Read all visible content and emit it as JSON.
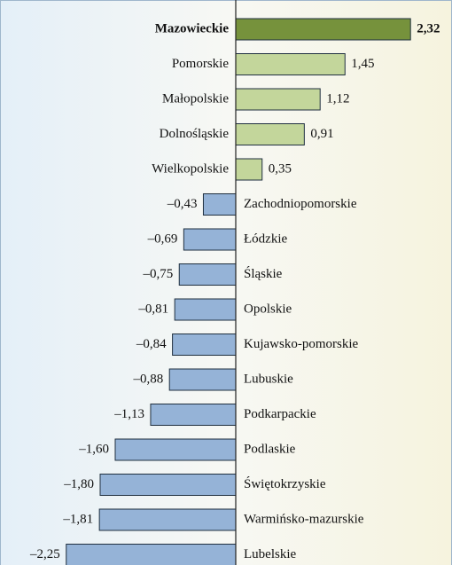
{
  "chart_data": {
    "type": "hbar",
    "categories": [
      "Mazowieckie",
      "Pomorskie",
      "Małopolskie",
      "Dolnośląskie",
      "Wielkopolskie",
      "Zachodniopomorskie",
      "Łódzkie",
      "Śląskie",
      "Opolskie",
      "Kujawsko-pomorskie",
      "Lubuskie",
      "Podkarpackie",
      "Podlaskie",
      "Świętokrzyskie",
      "Warmińsko-mazurskie",
      "Lubelskie"
    ],
    "values": [
      2.32,
      1.45,
      1.12,
      0.91,
      0.35,
      -0.43,
      -0.69,
      -0.75,
      -0.81,
      -0.84,
      -0.88,
      -1.13,
      -1.6,
      -1.8,
      -1.81,
      -2.25
    ],
    "value_labels": [
      "2,32",
      "1,45",
      "1,12",
      "0,91",
      "0,35",
      "–0,43",
      "–0,69",
      "–0,75",
      "–0,81",
      "–0,84",
      "–0,88",
      "–1,13",
      "–1,60",
      "–1,80",
      "–1,81",
      "–2,25"
    ],
    "colors": [
      "#76923c",
      "#c3d69b",
      "#c3d69b",
      "#c3d69b",
      "#c3d69b",
      "#95b3d7",
      "#95b3d7",
      "#95b3d7",
      "#95b3d7",
      "#95b3d7",
      "#95b3d7",
      "#95b3d7",
      "#95b3d7",
      "#95b3d7",
      "#95b3d7",
      "#95b3d7"
    ],
    "highlight": 0
  }
}
